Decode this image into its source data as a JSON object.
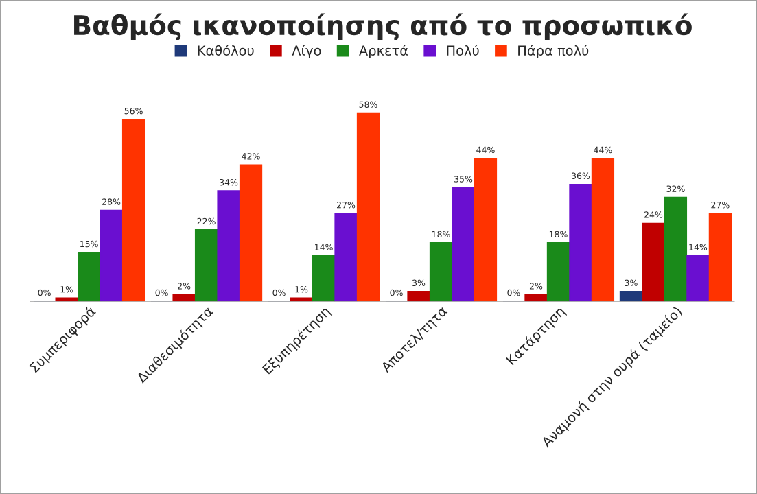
{
  "chart_data": {
    "type": "bar",
    "title": "Βαθμός ικανοποίησης από το προσωπικό",
    "categories": [
      "Συμπεριφορά",
      "Διαθεσιμότητα",
      "Εξυπηρέτηση",
      "Αποτελ/τητα",
      "Κατάρτηση",
      "Αναμονή στην ουρά (ταμείο)"
    ],
    "series": [
      {
        "name": "Καθόλου",
        "color": "#1f3a7a",
        "values": [
          0,
          0,
          0,
          0,
          0,
          3
        ],
        "value_labels": [
          "0%",
          "0%",
          "0%",
          "0%",
          "0%",
          "3%"
        ]
      },
      {
        "name": "Λίγο",
        "color": "#c00000",
        "values": [
          1,
          2,
          1,
          3,
          2,
          24
        ],
        "value_labels": [
          "1%",
          "2%",
          "1%",
          "3%",
          "2%",
          "24%"
        ]
      },
      {
        "name": "Αρκετά",
        "color": "#1a8a1a",
        "values": [
          15,
          22,
          14,
          18,
          18,
          32
        ],
        "value_labels": [
          "15%",
          "22%",
          "14%",
          "18%",
          "18%",
          "32%"
        ]
      },
      {
        "name": "Πολύ",
        "color": "#6a0fd0",
        "values": [
          28,
          34,
          27,
          35,
          36,
          14
        ],
        "value_labels": [
          "28%",
          "34%",
          "27%",
          "35%",
          "36%",
          "14%"
        ]
      },
      {
        "name": "Πάρα πολύ",
        "color": "#ff3300",
        "values": [
          56,
          42,
          58,
          44,
          44,
          27
        ],
        "value_labels": [
          "56%",
          "42%",
          "58%",
          "44%",
          "44%",
          "27%"
        ]
      }
    ],
    "legend": "top",
    "grid": false
  }
}
